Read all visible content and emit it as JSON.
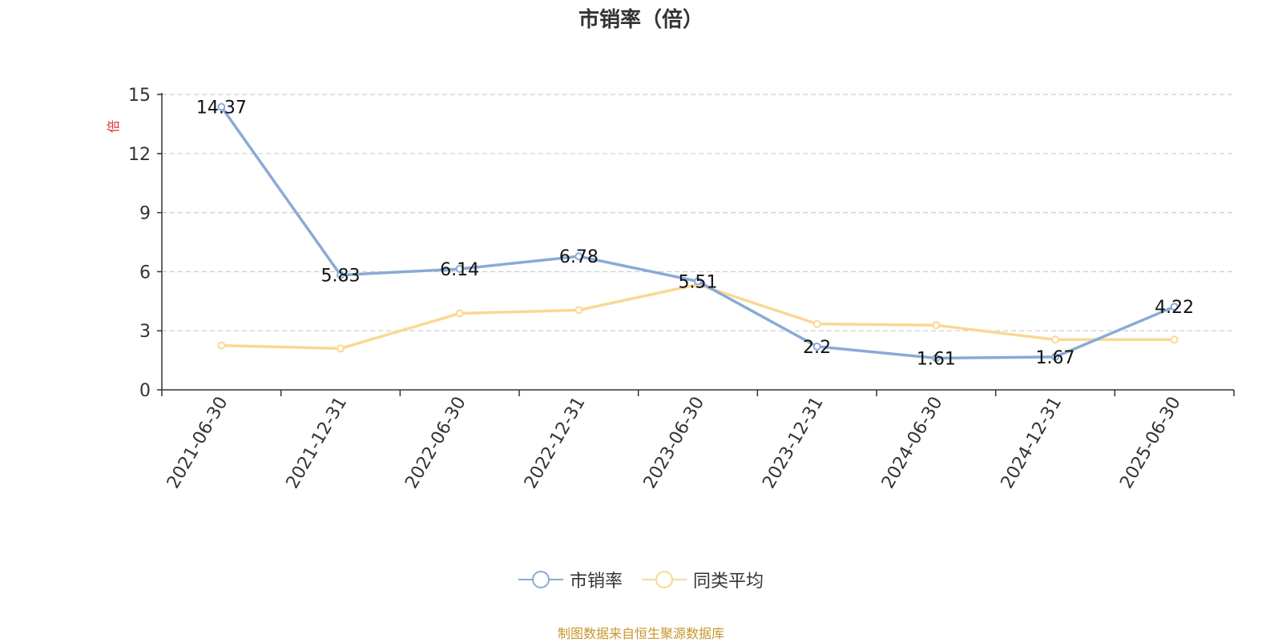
{
  "chart_data": {
    "type": "line",
    "title": "市销率（倍）",
    "ylabel": "倍",
    "categories": [
      "2021-06-30",
      "2021-12-31",
      "2022-06-30",
      "2022-12-31",
      "2023-06-30",
      "2023-12-31",
      "2024-06-30",
      "2024-12-31",
      "2025-06-30"
    ],
    "yticks": [
      "0",
      "3",
      "6",
      "9",
      "12",
      "15"
    ],
    "ylim": [
      0,
      15
    ],
    "grid": true,
    "legend_position": "bottom",
    "series": [
      {
        "name": "市销率",
        "color": "#8aaad6",
        "values": [
          14.37,
          5.83,
          6.14,
          6.78,
          5.51,
          2.2,
          1.61,
          1.67,
          4.22
        ],
        "labels": [
          "14.37",
          "5.83",
          "6.14",
          "6.78",
          "5.51",
          "2.2",
          "1.61",
          "1.67",
          "4.22"
        ]
      },
      {
        "name": "同类平均",
        "color": "#fad893",
        "values": [
          2.25,
          2.1,
          3.88,
          4.05,
          5.35,
          3.35,
          3.28,
          2.55,
          2.55
        ]
      }
    ]
  },
  "source": "制图数据来自恒生聚源数据库"
}
